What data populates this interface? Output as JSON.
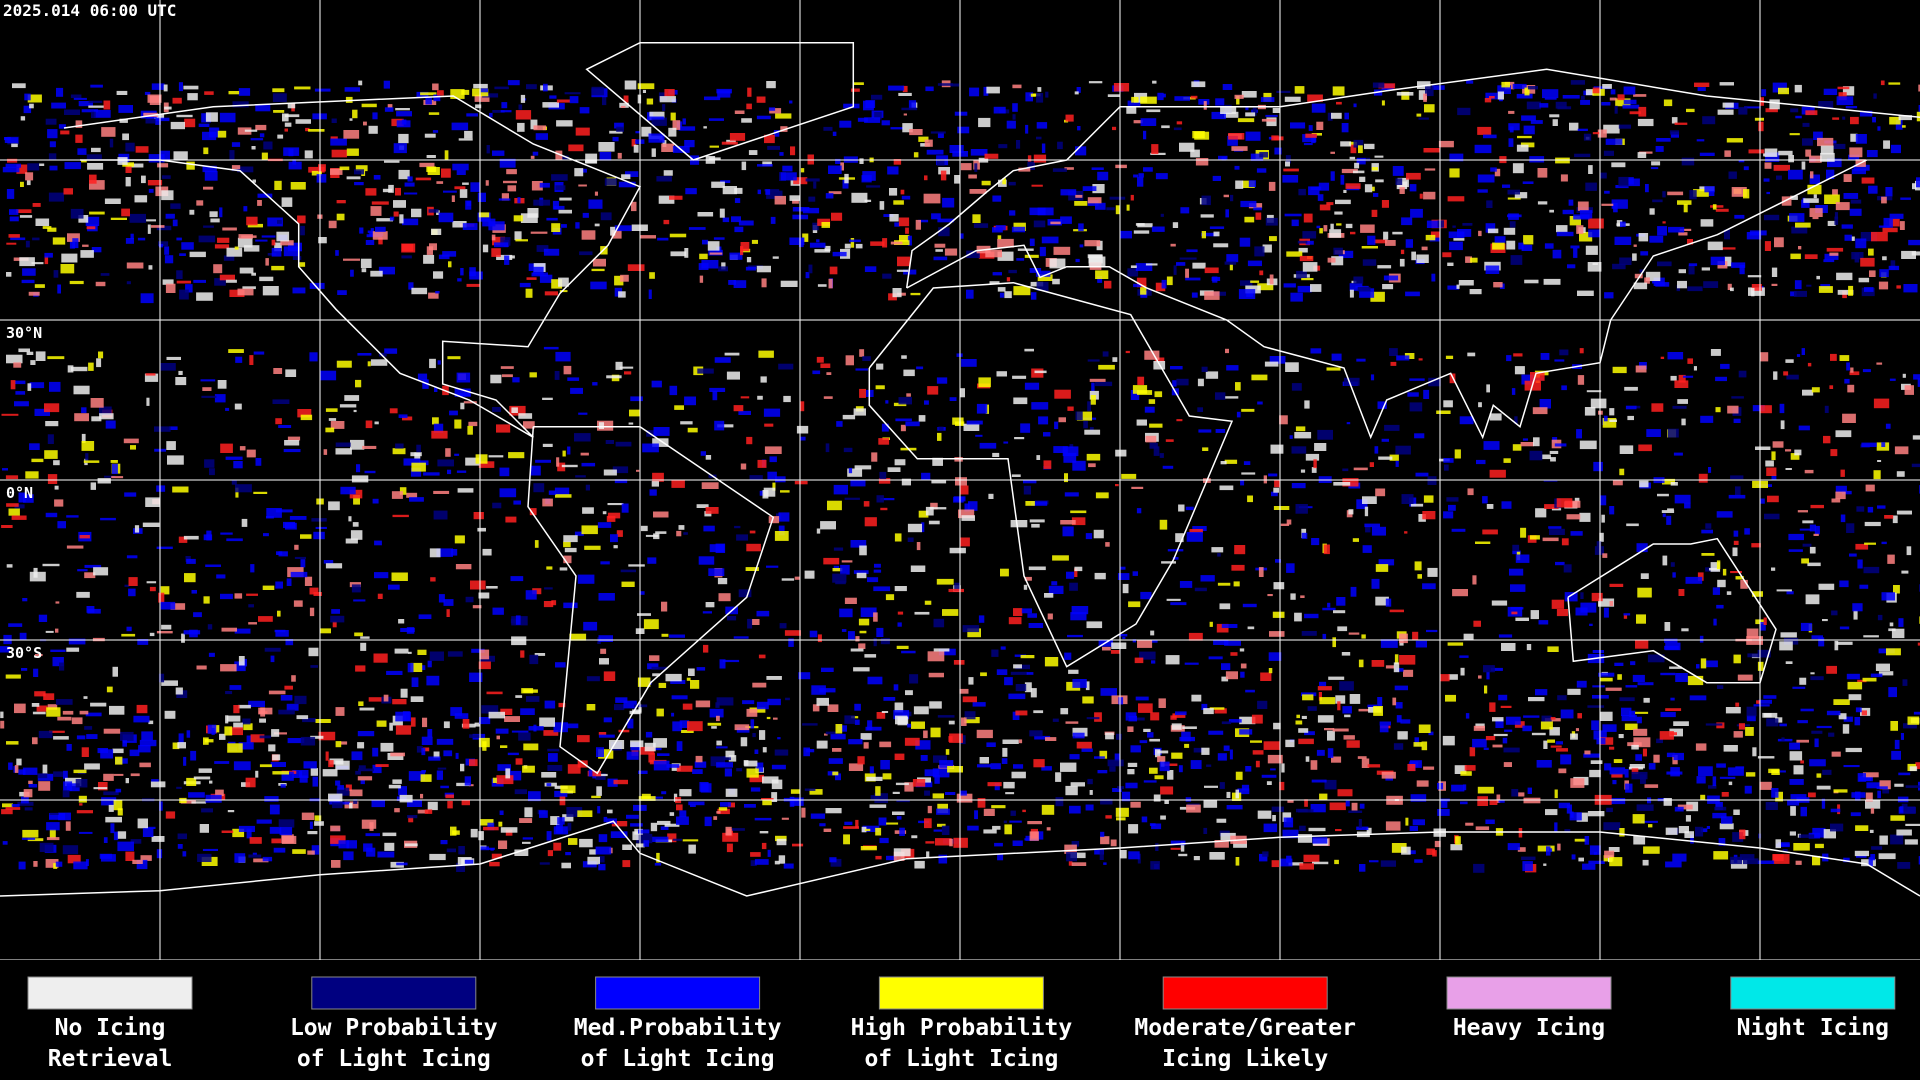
{
  "timestamp": "2025.014 06:00 UTC",
  "latitude_labels": [
    "30°N",
    "0°N",
    "30°S"
  ],
  "legend": [
    {
      "lines": [
        "No Icing",
        "Retrieval"
      ],
      "color": "#eeeeee"
    },
    {
      "lines": [
        "Low Probability",
        "of Light Icing"
      ],
      "color": "#000080"
    },
    {
      "lines": [
        "Med.Probability",
        "of Light Icing"
      ],
      "color": "#0000ff"
    },
    {
      "lines": [
        "High Probability",
        "of Light Icing"
      ],
      "color": "#ffff00"
    },
    {
      "lines": [
        "Moderate/Greater",
        "Icing Likely"
      ],
      "color": "#ff0000"
    },
    {
      "lines": [
        "Heavy Icing"
      ],
      "color": "#e8a0e8"
    },
    {
      "lines": [
        "Night Icing"
      ],
      "color": "#00e8e8"
    }
  ]
}
